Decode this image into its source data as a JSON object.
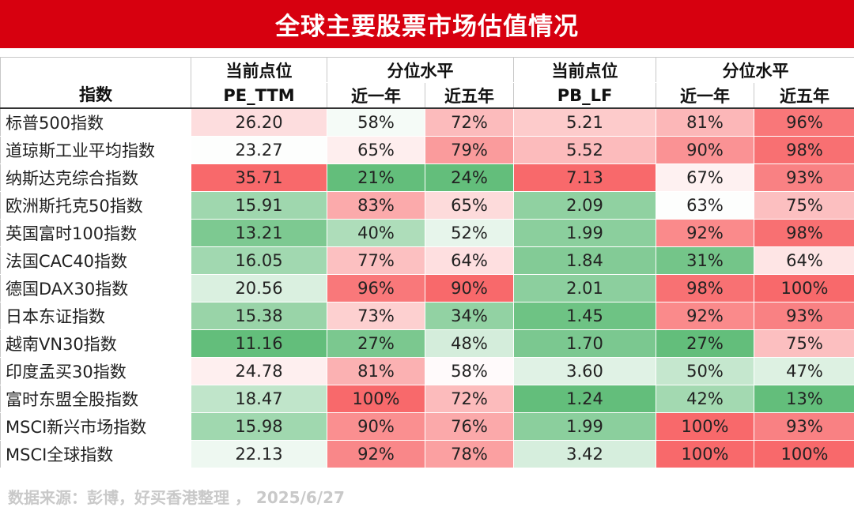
{
  "header": {
    "title": "全球主要股票市场估值情况"
  },
  "table_headers": {
    "index": "指数",
    "current_point": "当前点位",
    "percentile": "分位水平",
    "pe_ttm": "PE_TTM",
    "pb_lf": "PB_LF",
    "one_year": "近一年",
    "five_year": "近五年"
  },
  "colors": {
    "brand_red": "#d7000f",
    "high": "#f8696b",
    "mid": "#ffffff",
    "low": "#63be7b"
  },
  "chart_data": {
    "type": "table",
    "title": "全球主要股票市场估值情况",
    "columns": [
      "指数",
      "PE_TTM",
      "PE近一年分位",
      "PE近五年分位",
      "PB_LF",
      "PB近一年分位",
      "PB近五年分位"
    ],
    "rows": [
      {
        "name": "标普500指数",
        "pe": "26.20",
        "pe_1y": "58%",
        "pe_5y": "72%",
        "pb": "5.21",
        "pb_1y": "81%",
        "pb_5y": "96%"
      },
      {
        "name": "道琼斯工业平均指数",
        "pe": "23.27",
        "pe_1y": "65%",
        "pe_5y": "79%",
        "pb": "5.52",
        "pb_1y": "90%",
        "pb_5y": "98%"
      },
      {
        "name": "纳斯达克综合指数",
        "pe": "35.71",
        "pe_1y": "21%",
        "pe_5y": "24%",
        "pb": "7.13",
        "pb_1y": "67%",
        "pb_5y": "93%"
      },
      {
        "name": "欧洲斯托克50指数",
        "pe": "15.91",
        "pe_1y": "83%",
        "pe_5y": "65%",
        "pb": "2.09",
        "pb_1y": "63%",
        "pb_5y": "75%"
      },
      {
        "name": "英国富时100指数",
        "pe": "13.21",
        "pe_1y": "40%",
        "pe_5y": "52%",
        "pb": "1.99",
        "pb_1y": "92%",
        "pb_5y": "98%"
      },
      {
        "name": "法国CAC40指数",
        "pe": "16.05",
        "pe_1y": "77%",
        "pe_5y": "64%",
        "pb": "1.84",
        "pb_1y": "31%",
        "pb_5y": "64%"
      },
      {
        "name": "德国DAX30指数",
        "pe": "20.56",
        "pe_1y": "96%",
        "pe_5y": "90%",
        "pb": "2.01",
        "pb_1y": "98%",
        "pb_5y": "100%"
      },
      {
        "name": "日本东证指数",
        "pe": "15.38",
        "pe_1y": "73%",
        "pe_5y": "34%",
        "pb": "1.45",
        "pb_1y": "92%",
        "pb_5y": "93%"
      },
      {
        "name": "越南VN30指数",
        "pe": "11.16",
        "pe_1y": "27%",
        "pe_5y": "48%",
        "pb": "1.70",
        "pb_1y": "27%",
        "pb_5y": "75%"
      },
      {
        "name": "印度孟买30指数",
        "pe": "24.78",
        "pe_1y": "81%",
        "pe_5y": "58%",
        "pb": "3.60",
        "pb_1y": "50%",
        "pb_5y": "47%"
      },
      {
        "name": "富时东盟全股指数",
        "pe": "18.47",
        "pe_1y": "100%",
        "pe_5y": "72%",
        "pb": "1.24",
        "pb_1y": "42%",
        "pb_5y": "13%"
      },
      {
        "name": "MSCI新兴市场指数",
        "pe": "15.98",
        "pe_1y": "90%",
        "pe_5y": "76%",
        "pb": "1.99",
        "pb_1y": "100%",
        "pb_5y": "93%"
      },
      {
        "name": "MSCI全球指数",
        "pe": "22.13",
        "pe_1y": "92%",
        "pe_5y": "78%",
        "pb": "3.42",
        "pb_1y": "100%",
        "pb_5y": "100%"
      }
    ]
  },
  "footer": {
    "source": "数据来源：彭博，好买香港整理 ， 2025/6/27"
  }
}
